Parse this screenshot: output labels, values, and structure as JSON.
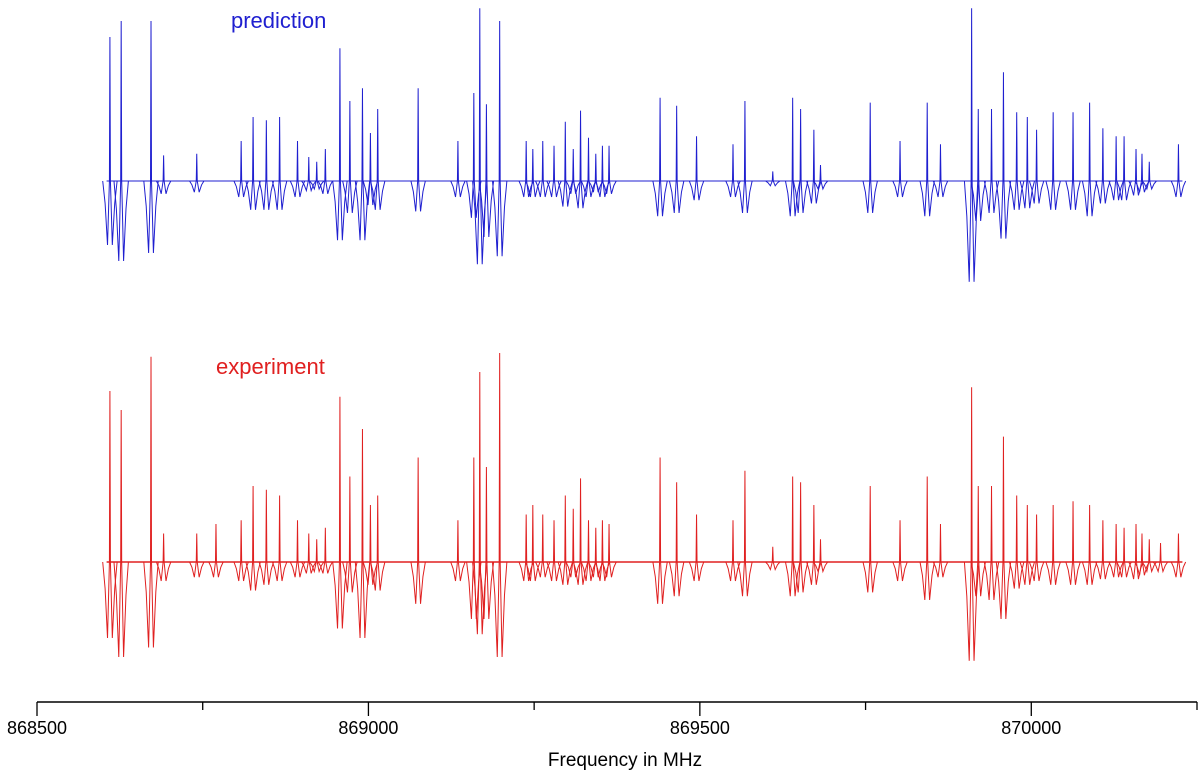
{
  "chart_data": {
    "type": "line",
    "xlabel": "Frequency in MHz",
    "xlim": [
      868500,
      870250
    ],
    "x_ticks": [
      868500,
      869000,
      869500,
      870000
    ],
    "x_minor_step": 250,
    "series": [
      {
        "name": "prediction",
        "color": "#1f1fd0",
        "baseline": 0,
        "ylim": [
          -1.3,
          1.3
        ],
        "lines": [
          [
            868610,
            0.9,
            -0.4
          ],
          [
            868627,
            1.0,
            -0.5
          ],
          [
            868672,
            1.0,
            -0.45
          ],
          [
            868691,
            0.16,
            -0.08
          ],
          [
            868741,
            0.17,
            -0.07
          ],
          [
            868808,
            0.25,
            -0.1
          ],
          [
            868826,
            0.4,
            -0.18
          ],
          [
            868846,
            0.38,
            -0.18
          ],
          [
            868866,
            0.4,
            -0.18
          ],
          [
            868893,
            0.25,
            -0.1
          ],
          [
            868910,
            0.15,
            -0.06
          ],
          [
            868922,
            0.12,
            -0.05
          ],
          [
            868935,
            0.2,
            -0.08
          ],
          [
            868957,
            0.83,
            -0.37
          ],
          [
            868972,
            0.5,
            -0.2
          ],
          [
            868991,
            0.58,
            -0.37
          ],
          [
            869003,
            0.3,
            -0.15
          ],
          [
            869014,
            0.45,
            -0.18
          ],
          [
            869075,
            0.58,
            -0.19
          ],
          [
            869135,
            0.25,
            -0.1
          ],
          [
            869159,
            0.55,
            -0.23
          ],
          [
            869168,
            1.08,
            -0.52
          ],
          [
            869178,
            0.48,
            -0.35
          ],
          [
            869198,
            1.0,
            -0.47
          ],
          [
            869238,
            0.25,
            -0.1
          ],
          [
            869248,
            0.2,
            -0.1
          ],
          [
            869263,
            0.25,
            -0.1
          ],
          [
            869280,
            0.22,
            -0.1
          ],
          [
            869297,
            0.37,
            -0.16
          ],
          [
            869309,
            0.2,
            -0.08
          ],
          [
            869320,
            0.44,
            -0.17
          ],
          [
            869332,
            0.27,
            -0.1
          ],
          [
            869343,
            0.17,
            -0.07
          ],
          [
            869353,
            0.22,
            -0.1
          ],
          [
            869363,
            0.22,
            -0.08
          ],
          [
            869440,
            0.52,
            -0.22
          ],
          [
            869465,
            0.47,
            -0.2
          ],
          [
            869495,
            0.28,
            -0.12
          ],
          [
            869550,
            0.23,
            -0.1
          ],
          [
            869568,
            0.5,
            -0.2
          ],
          [
            869610,
            0.06,
            -0.03
          ],
          [
            869640,
            0.52,
            -0.22
          ],
          [
            869652,
            0.45,
            -0.2
          ],
          [
            869672,
            0.32,
            -0.14
          ],
          [
            869682,
            0.1,
            -0.05
          ],
          [
            869757,
            0.49,
            -0.2
          ],
          [
            869802,
            0.25,
            -0.1
          ],
          [
            869843,
            0.49,
            -0.22
          ],
          [
            869863,
            0.23,
            -0.1
          ],
          [
            869910,
            1.08,
            -0.63
          ],
          [
            869920,
            0.45,
            -0.25
          ],
          [
            869940,
            0.45,
            -0.2
          ],
          [
            869958,
            0.68,
            -0.36
          ],
          [
            869978,
            0.43,
            -0.18
          ],
          [
            869994,
            0.4,
            -0.17
          ],
          [
            870008,
            0.32,
            -0.14
          ],
          [
            870033,
            0.43,
            -0.18
          ],
          [
            870063,
            0.43,
            -0.18
          ],
          [
            870088,
            0.49,
            -0.22
          ],
          [
            870108,
            0.33,
            -0.14
          ],
          [
            870128,
            0.28,
            -0.12
          ],
          [
            870140,
            0.28,
            -0.12
          ],
          [
            870158,
            0.2,
            -0.09
          ],
          [
            870167,
            0.17,
            -0.07
          ],
          [
            870178,
            0.12,
            -0.05
          ],
          [
            870222,
            0.23,
            -0.1
          ]
        ]
      },
      {
        "name": "experiment",
        "color": "#e02020",
        "baseline": 0,
        "ylim": [
          -1.3,
          1.3
        ],
        "lines": [
          [
            868610,
            0.9,
            -0.4
          ],
          [
            868627,
            0.8,
            -0.5
          ],
          [
            868672,
            1.08,
            -0.45
          ],
          [
            868691,
            0.15,
            -0.1
          ],
          [
            868741,
            0.15,
            -0.08
          ],
          [
            868770,
            0.2,
            -0.08
          ],
          [
            868808,
            0.22,
            -0.1
          ],
          [
            868826,
            0.4,
            -0.15
          ],
          [
            868846,
            0.38,
            -0.12
          ],
          [
            868866,
            0.35,
            -0.1
          ],
          [
            868893,
            0.22,
            -0.08
          ],
          [
            868910,
            0.15,
            -0.06
          ],
          [
            868922,
            0.12,
            -0.05
          ],
          [
            868935,
            0.18,
            -0.06
          ],
          [
            868957,
            0.87,
            -0.35
          ],
          [
            868972,
            0.45,
            -0.16
          ],
          [
            868991,
            0.7,
            -0.4
          ],
          [
            869003,
            0.3,
            -0.12
          ],
          [
            869014,
            0.35,
            -0.15
          ],
          [
            869075,
            0.55,
            -0.22
          ],
          [
            869135,
            0.22,
            -0.1
          ],
          [
            869159,
            0.55,
            -0.3
          ],
          [
            869168,
            1.0,
            -0.38
          ],
          [
            869178,
            0.5,
            -0.3
          ],
          [
            869198,
            1.1,
            -0.5
          ],
          [
            869238,
            0.25,
            -0.1
          ],
          [
            869248,
            0.3,
            -0.1
          ],
          [
            869263,
            0.25,
            -0.08
          ],
          [
            869280,
            0.22,
            -0.1
          ],
          [
            869297,
            0.35,
            -0.12
          ],
          [
            869309,
            0.28,
            -0.08
          ],
          [
            869320,
            0.44,
            -0.12
          ],
          [
            869332,
            0.22,
            -0.1
          ],
          [
            869343,
            0.18,
            -0.08
          ],
          [
            869353,
            0.22,
            -0.1
          ],
          [
            869363,
            0.2,
            -0.08
          ],
          [
            869440,
            0.55,
            -0.22
          ],
          [
            869465,
            0.42,
            -0.18
          ],
          [
            869495,
            0.25,
            -0.1
          ],
          [
            869550,
            0.22,
            -0.1
          ],
          [
            869568,
            0.48,
            -0.18
          ],
          [
            869610,
            0.08,
            -0.04
          ],
          [
            869640,
            0.45,
            -0.18
          ],
          [
            869652,
            0.42,
            -0.16
          ],
          [
            869672,
            0.3,
            -0.12
          ],
          [
            869682,
            0.12,
            -0.05
          ],
          [
            869757,
            0.4,
            -0.16
          ],
          [
            869802,
            0.22,
            -0.1
          ],
          [
            869843,
            0.45,
            -0.2
          ],
          [
            869863,
            0.2,
            -0.08
          ],
          [
            869910,
            0.92,
            -0.52
          ],
          [
            869920,
            0.4,
            -0.18
          ],
          [
            869940,
            0.4,
            -0.2
          ],
          [
            869958,
            0.66,
            -0.3
          ],
          [
            869978,
            0.35,
            -0.14
          ],
          [
            869994,
            0.3,
            -0.12
          ],
          [
            870008,
            0.25,
            -0.1
          ],
          [
            870033,
            0.3,
            -0.12
          ],
          [
            870063,
            0.32,
            -0.12
          ],
          [
            870088,
            0.3,
            -0.12
          ],
          [
            870108,
            0.22,
            -0.09
          ],
          [
            870128,
            0.2,
            -0.08
          ],
          [
            870140,
            0.18,
            -0.08
          ],
          [
            870158,
            0.2,
            -0.09
          ],
          [
            870167,
            0.15,
            -0.07
          ],
          [
            870178,
            0.12,
            -0.05
          ],
          [
            870195,
            0.1,
            -0.05
          ],
          [
            870222,
            0.15,
            -0.08
          ]
        ]
      }
    ]
  }
}
